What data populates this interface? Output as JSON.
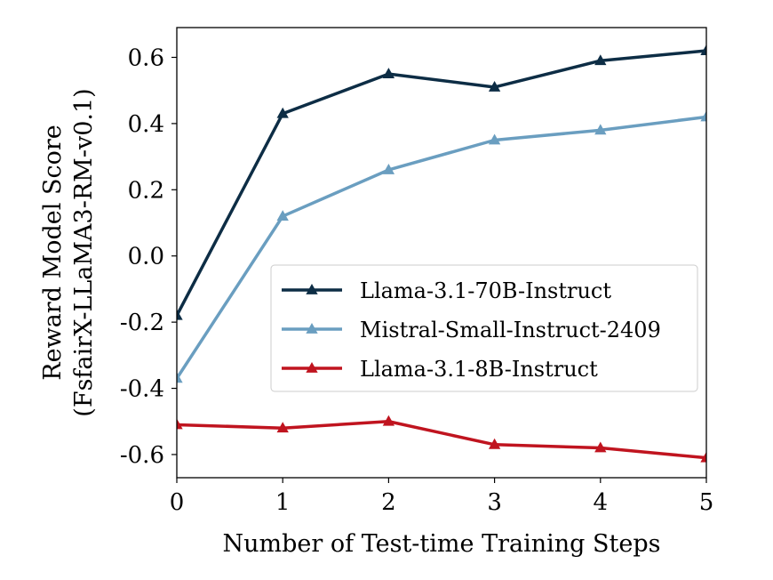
{
  "chart_data": {
    "type": "line",
    "title": "",
    "xlabel": "Number of Test-time Training Steps",
    "ylabel_line1": "Reward Model Score",
    "ylabel_line2": "(FsfairX-LLaMA3-RM-v0.1)",
    "x": [
      0,
      1,
      2,
      3,
      4,
      5
    ],
    "xlim": [
      0,
      5
    ],
    "ylim": [
      -0.67,
      0.69
    ],
    "x_ticks": [
      0,
      1,
      2,
      3,
      4,
      5
    ],
    "x_tick_labels": [
      "0",
      "1",
      "2",
      "3",
      "4",
      "5"
    ],
    "y_ticks": [
      -0.6,
      -0.4,
      -0.2,
      0.0,
      0.2,
      0.4,
      0.6
    ],
    "y_tick_labels": [
      "-0.6",
      "-0.4",
      "-0.2",
      "0.0",
      "0.2",
      "0.4",
      "0.6"
    ],
    "grid": false,
    "legend_position": "center-right",
    "marker": "triangle-up",
    "series": [
      {
        "name": "Llama-3.1-70B-Instruct",
        "color": "#0d2d45",
        "values": [
          -0.18,
          0.43,
          0.55,
          0.51,
          0.59,
          0.62
        ]
      },
      {
        "name": "Mistral-Small-Instruct-2409",
        "color": "#6a9ec0",
        "values": [
          -0.37,
          0.12,
          0.26,
          0.35,
          0.38,
          0.42
        ]
      },
      {
        "name": "Llama-3.1-8B-Instruct",
        "color": "#c0141f",
        "values": [
          -0.51,
          -0.52,
          -0.5,
          -0.57,
          -0.58,
          -0.61
        ]
      }
    ]
  }
}
